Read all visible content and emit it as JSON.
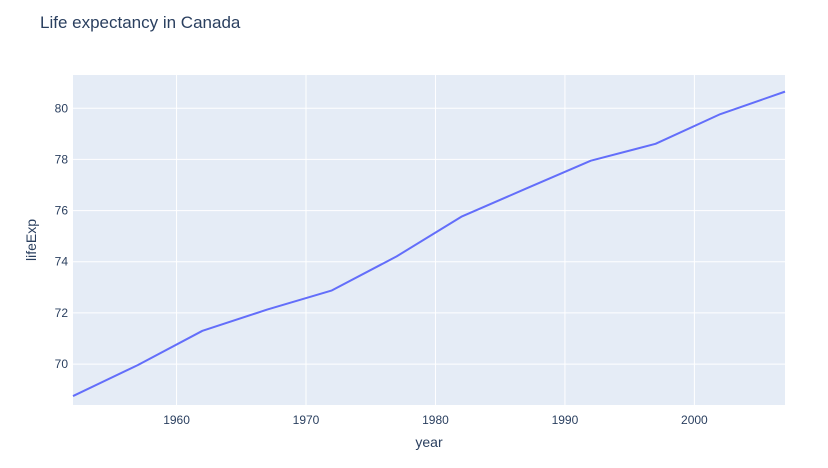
{
  "chart_data": {
    "type": "line",
    "title": "Life expectancy in Canada",
    "xlabel": "year",
    "ylabel": "lifeExp",
    "xlim": [
      1952,
      2007
    ],
    "ylim": [
      68.4,
      81.3
    ],
    "x_ticks": [
      1960,
      1970,
      1980,
      1990,
      2000
    ],
    "y_ticks": [
      70,
      72,
      74,
      76,
      78,
      80
    ],
    "grid": true,
    "colors": {
      "plot_bg": "#e5ecf6",
      "grid": "#ffffff",
      "line": "#636efa",
      "text": "#2a3f5f"
    },
    "series": [
      {
        "x": [
          1952,
          1957,
          1962,
          1967,
          1972,
          1977,
          1982,
          1987,
          1992,
          1997,
          2002,
          2007
        ],
        "y": [
          68.75,
          69.96,
          71.3,
          72.13,
          72.88,
          74.21,
          75.76,
          76.86,
          77.95,
          78.61,
          79.77,
          80.65
        ]
      }
    ]
  }
}
